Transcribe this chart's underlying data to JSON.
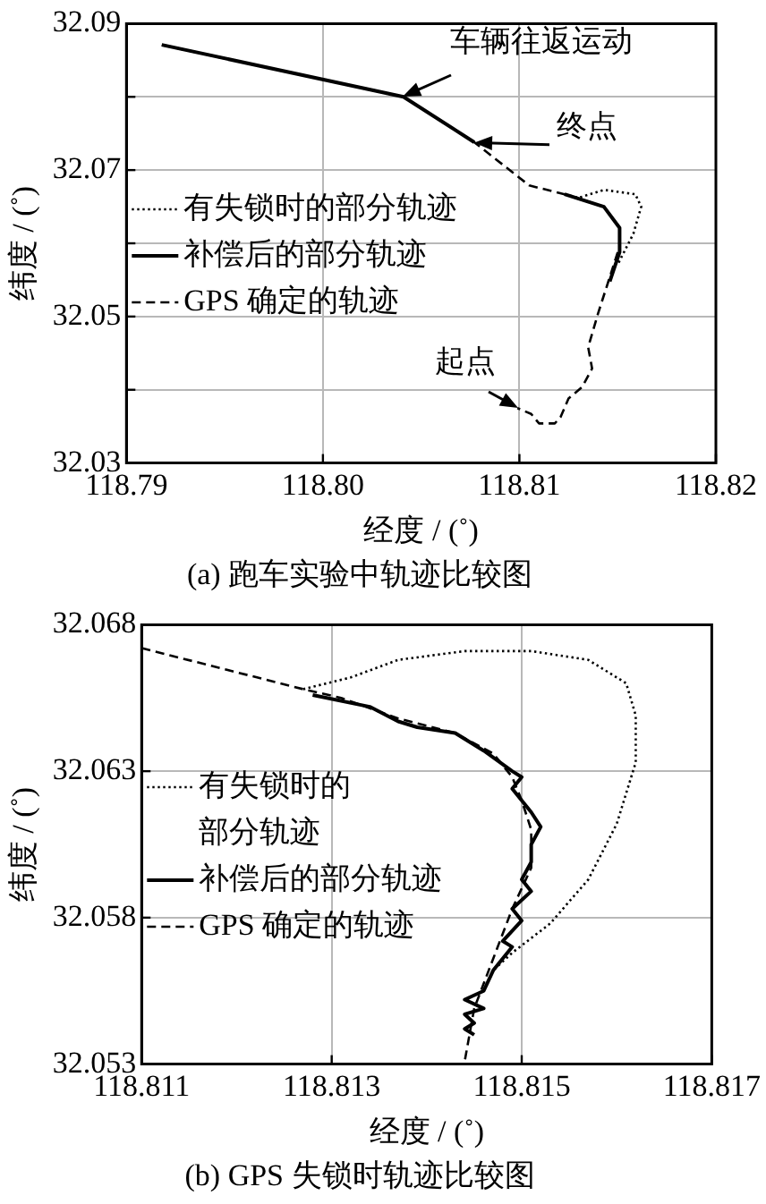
{
  "chart_data": [
    {
      "type": "line",
      "title": "(a) 跑车实验中轨迹比较图",
      "xlabel": "经度 / (˚)",
      "ylabel": "纬度 / (˚)",
      "xlim": [
        118.79,
        118.82
      ],
      "xticks": [
        118.79,
        {
          "value": 118.8,
          "label": "118.80"
        },
        118.81,
        118.82
      ],
      "ylim": [
        32.03,
        32.09
      ],
      "yticks": [
        32.03,
        {
          "value": 32.04,
          "label": null
        },
        32.05,
        {
          "value": 32.06,
          "label": null
        },
        32.07,
        {
          "value": 32.08,
          "label": null
        },
        32.09
      ],
      "grid": true,
      "legend": "left",
      "annotations": [
        {
          "text": "车辆往返运动",
          "x": 118.8041,
          "y": 32.08
        },
        {
          "text": "终点",
          "x": 118.8077,
          "y": 32.0738
        },
        {
          "text": "起点",
          "x": 118.8099,
          "y": 32.0375
        }
      ],
      "series": [
        {
          "name": "有失锁时的部分轨迹",
          "color": "#000000",
          "line_style": "dotted",
          "x": [
            118.8123,
            118.813,
            118.8143,
            118.8159,
            118.8162,
            118.8158,
            118.815
          ],
          "values": [
            32.0667,
            32.0662,
            32.0673,
            32.0667,
            32.065,
            32.0613,
            32.0571
          ]
        },
        {
          "name": "补偿后的部分轨迹",
          "color": "#000000",
          "line_style": "solid",
          "x": [
            118.7918,
            118.8041,
            118.8077,
            null,
            118.8123,
            118.8143,
            118.8151,
            118.8151,
            118.8146
          ],
          "values": [
            32.0871,
            32.08,
            32.0738,
            null,
            32.0667,
            32.065,
            32.0621,
            32.0588,
            32.0548
          ]
        },
        {
          "name": "GPS 确定的轨迹",
          "color": "#000000",
          "line_style": "dashed",
          "x": [
            118.7918,
            118.8041,
            118.8077,
            118.8105,
            118.8123,
            118.8143,
            118.8151,
            118.8151,
            118.8146,
            118.814,
            118.8135,
            118.8137,
            118.8132,
            118.8125,
            118.8121,
            118.8118,
            118.811,
            118.8106,
            118.8099
          ],
          "values": [
            32.0871,
            32.08,
            32.0738,
            32.0679,
            32.0667,
            32.065,
            32.0621,
            32.0596,
            32.0554,
            32.0504,
            32.0458,
            32.0429,
            32.0404,
            32.0388,
            32.0363,
            32.0354,
            32.0354,
            32.0367,
            32.0375
          ]
        }
      ]
    },
    {
      "type": "line",
      "title": "(b) GPS 失锁时轨迹比较图",
      "xlabel": "经度 / (˚)",
      "ylabel": "纬度 / (˚)",
      "xlim": [
        118.811,
        118.817
      ],
      "xticks": [
        118.811,
        118.813,
        118.815,
        118.817
      ],
      "ylim": [
        32.053,
        32.068
      ],
      "yticks": [
        32.053,
        32.058,
        32.063,
        32.068
      ],
      "grid": true,
      "legend": "left",
      "series": [
        {
          "name": "有失锁时的部分轨迹",
          "color": "#000000",
          "line_style": "dotted",
          "x": [
            118.8127,
            118.8132,
            118.8137,
            118.8144,
            118.8151,
            118.8157,
            118.8161,
            118.8162,
            118.8162,
            118.816,
            118.8157,
            118.8153,
            118.8149,
            118.8147
          ],
          "values": [
            32.0658,
            32.0662,
            32.0668,
            32.0671,
            32.0671,
            32.0668,
            32.066,
            32.0649,
            32.0633,
            32.0612,
            32.0593,
            32.0578,
            32.0568,
            32.0562
          ]
        },
        {
          "name": "补偿后的部分轨迹",
          "color": "#000000",
          "line_style": "solid",
          "x": [
            118.8128,
            118.8134,
            118.8137,
            118.8139,
            118.8143,
            118.8146,
            118.8149,
            118.815,
            118.8149,
            118.8151,
            118.8152,
            118.8151,
            118.8151,
            118.815,
            118.8151,
            118.8149,
            118.815,
            118.8148,
            118.8149,
            118.8147,
            118.8146,
            118.8144,
            118.8146,
            118.8144,
            118.8145,
            118.8144,
            118.8145
          ],
          "values": [
            32.0656,
            32.0652,
            32.0647,
            32.0645,
            32.0643,
            32.0637,
            32.063,
            32.0628,
            32.0624,
            32.0616,
            32.0611,
            32.0605,
            32.0599,
            32.0593,
            32.0589,
            32.0583,
            32.0579,
            32.0572,
            32.057,
            32.0562,
            32.0555,
            32.0552,
            32.0549,
            32.0547,
            32.0544,
            32.0542,
            32.054
          ]
        },
        {
          "name": "GPS 确定的轨迹",
          "color": "#000000",
          "line_style": "dashed",
          "x": [
            118.811,
            118.8127,
            118.8131,
            118.8137,
            118.8143,
            118.8147,
            118.8149,
            118.815,
            118.8151,
            118.8151,
            118.8149,
            118.8147,
            118.8145,
            118.8144
          ],
          "values": [
            32.0672,
            32.0658,
            32.0655,
            32.0648,
            32.0643,
            32.0636,
            32.0628,
            32.062,
            32.061,
            32.0597,
            32.0583,
            32.0566,
            32.0549,
            32.0531
          ]
        }
      ]
    }
  ]
}
